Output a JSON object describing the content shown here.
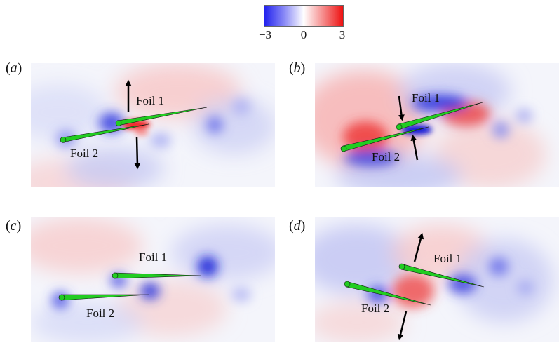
{
  "colorbar": {
    "min_label": "−3",
    "mid_label": "0",
    "max_label": "3",
    "colors": {
      "negative": "#2222ee",
      "zero": "#ffffff",
      "positive": "#ee1111"
    }
  },
  "panels": [
    {
      "label_open": "(",
      "label_letter": "a",
      "label_close": ")",
      "foil1": "Foil 1",
      "foil2": "Foil 2"
    },
    {
      "label_open": "(",
      "label_letter": "b",
      "label_close": ")",
      "foil1": "Foil 1",
      "foil2": "Foil 2"
    },
    {
      "label_open": "(",
      "label_letter": "c",
      "label_close": ")",
      "foil1": "Foil 1",
      "foil2": "Foil 2"
    },
    {
      "label_open": "(",
      "label_letter": "d",
      "label_close": ")",
      "foil1": "Foil 1",
      "foil2": "Foil 2"
    }
  ],
  "style": {
    "foil_color": "#22cc22",
    "arrow_color": "#000000"
  }
}
